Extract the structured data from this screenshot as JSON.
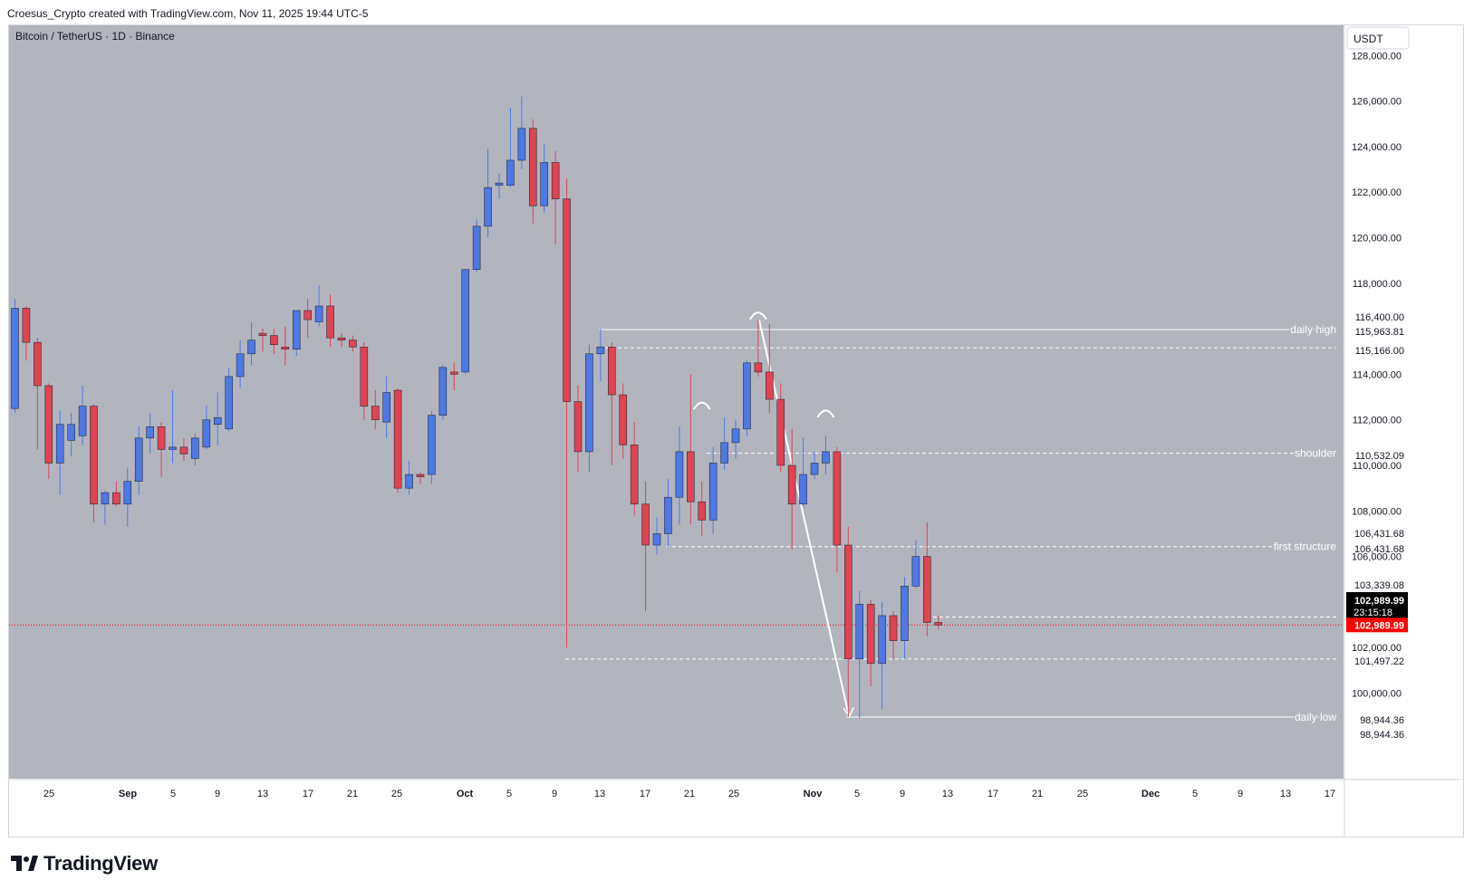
{
  "header": {
    "credit": "Croesus_Crypto created with TradingView.com, Nov 11, 2025 19:44 UTC-5"
  },
  "footer": {
    "brand": "TradingView",
    "logo_icon": "tradingview-logo-icon"
  },
  "colors": {
    "background": "#b2b5be",
    "bull": "#4d78e6",
    "bear": "#e04352",
    "annotation": "#ffffff",
    "current_price": "#ff0000"
  },
  "chart_data": {
    "type": "candlestick",
    "title": "Bitcoin / TetherUS · 1D · Binance",
    "currency": "USDT",
    "ylim": [
      96000,
      130000
    ],
    "y_ticks": [
      "128,000.00",
      "126,000.00",
      "124,000.00",
      "122,000.00",
      "120,000.00",
      "118,000.00",
      "114,000.00",
      "112,000.00",
      "110,000.00",
      "108,000.00",
      "106,000.00",
      "102,000.00",
      "100,000.00"
    ],
    "x_ticks": [
      "25",
      "Sep",
      "5",
      "9",
      "13",
      "17",
      "21",
      "25",
      "Oct",
      "5",
      "9",
      "13",
      "17",
      "21",
      "25",
      "Nov",
      "5",
      "9",
      "13",
      "17",
      "21",
      "25",
      "Dec",
      "5",
      "9",
      "13",
      "17"
    ],
    "candles": [
      {
        "date": "2025-08-22",
        "o": 112500,
        "h": 117300,
        "l": 112300,
        "c": 116900
      },
      {
        "date": "2025-08-23",
        "o": 116900,
        "h": 117000,
        "l": 114600,
        "c": 115400
      },
      {
        "date": "2025-08-24",
        "o": 115400,
        "h": 115600,
        "l": 110700,
        "c": 113500
      },
      {
        "date": "2025-08-25",
        "o": 113500,
        "h": 113600,
        "l": 109400,
        "c": 110100
      },
      {
        "date": "2025-08-26",
        "o": 110100,
        "h": 112400,
        "l": 108700,
        "c": 111800
      },
      {
        "date": "2025-08-27",
        "o": 111100,
        "h": 112300,
        "l": 110400,
        "c": 111800
      },
      {
        "date": "2025-08-28",
        "o": 111300,
        "h": 113500,
        "l": 110900,
        "c": 112600
      },
      {
        "date": "2025-08-29",
        "o": 112600,
        "h": 112700,
        "l": 107500,
        "c": 108300
      },
      {
        "date": "2025-08-30",
        "o": 108300,
        "h": 108900,
        "l": 107400,
        "c": 108800
      },
      {
        "date": "2025-08-31",
        "o": 108800,
        "h": 109300,
        "l": 108200,
        "c": 108300
      },
      {
        "date": "2025-09-01",
        "o": 108300,
        "h": 109900,
        "l": 107300,
        "c": 109300
      },
      {
        "date": "2025-09-02",
        "o": 109300,
        "h": 111700,
        "l": 108700,
        "c": 111200
      },
      {
        "date": "2025-09-03",
        "o": 111200,
        "h": 112300,
        "l": 110500,
        "c": 111700
      },
      {
        "date": "2025-09-04",
        "o": 111700,
        "h": 111900,
        "l": 109500,
        "c": 110700
      },
      {
        "date": "2025-09-05",
        "o": 110700,
        "h": 113300,
        "l": 110100,
        "c": 110800
      },
      {
        "date": "2025-09-06",
        "o": 110800,
        "h": 111200,
        "l": 110200,
        "c": 110500
      },
      {
        "date": "2025-09-07",
        "o": 110300,
        "h": 111400,
        "l": 110000,
        "c": 111200
      },
      {
        "date": "2025-09-08",
        "o": 110800,
        "h": 112600,
        "l": 110700,
        "c": 112000
      },
      {
        "date": "2025-09-09",
        "o": 111800,
        "h": 113200,
        "l": 110900,
        "c": 112100
      },
      {
        "date": "2025-09-10",
        "o": 111600,
        "h": 114300,
        "l": 111500,
        "c": 113900
      },
      {
        "date": "2025-09-11",
        "o": 113900,
        "h": 115500,
        "l": 113400,
        "c": 114900
      },
      {
        "date": "2025-09-12",
        "o": 114900,
        "h": 116300,
        "l": 114400,
        "c": 115500
      },
      {
        "date": "2025-09-13",
        "o": 115800,
        "h": 116000,
        "l": 115000,
        "c": 115700
      },
      {
        "date": "2025-09-14",
        "o": 115700,
        "h": 116000,
        "l": 114900,
        "c": 115300
      },
      {
        "date": "2025-09-15",
        "o": 115200,
        "h": 116100,
        "l": 114400,
        "c": 115100
      },
      {
        "date": "2025-09-16",
        "o": 115100,
        "h": 116800,
        "l": 114800,
        "c": 116800
      },
      {
        "date": "2025-09-17",
        "o": 116800,
        "h": 117300,
        "l": 115600,
        "c": 116400
      },
      {
        "date": "2025-09-18",
        "o": 116300,
        "h": 117900,
        "l": 116100,
        "c": 117000
      },
      {
        "date": "2025-09-19",
        "o": 117000,
        "h": 117500,
        "l": 115200,
        "c": 115600
      },
      {
        "date": "2025-09-20",
        "o": 115600,
        "h": 115800,
        "l": 115200,
        "c": 115500
      },
      {
        "date": "2025-09-21",
        "o": 115500,
        "h": 115700,
        "l": 115000,
        "c": 115200
      },
      {
        "date": "2025-09-22",
        "o": 115200,
        "h": 115400,
        "l": 112000,
        "c": 112600
      },
      {
        "date": "2025-09-23",
        "o": 112600,
        "h": 113300,
        "l": 111600,
        "c": 112000
      },
      {
        "date": "2025-09-24",
        "o": 111900,
        "h": 113900,
        "l": 111200,
        "c": 113200
      },
      {
        "date": "2025-09-25",
        "o": 113300,
        "h": 113400,
        "l": 108800,
        "c": 109000
      },
      {
        "date": "2025-09-26",
        "o": 109000,
        "h": 110200,
        "l": 108700,
        "c": 109600
      },
      {
        "date": "2025-09-27",
        "o": 109600,
        "h": 109700,
        "l": 109200,
        "c": 109500
      },
      {
        "date": "2025-09-28",
        "o": 109600,
        "h": 112400,
        "l": 109200,
        "c": 112200
      },
      {
        "date": "2025-09-29",
        "o": 112200,
        "h": 114400,
        "l": 112000,
        "c": 114300
      },
      {
        "date": "2025-09-30",
        "o": 114100,
        "h": 114500,
        "l": 113300,
        "c": 114000
      },
      {
        "date": "2025-10-01",
        "o": 114100,
        "h": 118500,
        "l": 114000,
        "c": 118600
      },
      {
        "date": "2025-10-02",
        "o": 118600,
        "h": 120800,
        "l": 118500,
        "c": 120500
      },
      {
        "date": "2025-10-03",
        "o": 120500,
        "h": 123900,
        "l": 120000,
        "c": 122200
      },
      {
        "date": "2025-10-04",
        "o": 122300,
        "h": 122800,
        "l": 121700,
        "c": 122400
      },
      {
        "date": "2025-10-05",
        "o": 122300,
        "h": 125700,
        "l": 122200,
        "c": 123400
      },
      {
        "date": "2025-10-06",
        "o": 123400,
        "h": 126200,
        "l": 123000,
        "c": 124800
      },
      {
        "date": "2025-10-07",
        "o": 124800,
        "h": 125200,
        "l": 120600,
        "c": 121400
      },
      {
        "date": "2025-10-08",
        "o": 121400,
        "h": 124100,
        "l": 121100,
        "c": 123300
      },
      {
        "date": "2025-10-09",
        "o": 123300,
        "h": 123800,
        "l": 119700,
        "c": 121700
      },
      {
        "date": "2025-10-10",
        "o": 121700,
        "h": 122600,
        "l": 102000,
        "c": 112800
      },
      {
        "date": "2025-10-11",
        "o": 112800,
        "h": 113500,
        "l": 109700,
        "c": 110600
      },
      {
        "date": "2025-10-12",
        "o": 110600,
        "h": 115300,
        "l": 109700,
        "c": 114900
      },
      {
        "date": "2025-10-13",
        "o": 114900,
        "h": 116000,
        "l": 113700,
        "c": 115200
      },
      {
        "date": "2025-10-14",
        "o": 115200,
        "h": 115400,
        "l": 110000,
        "c": 113100
      },
      {
        "date": "2025-10-15",
        "o": 113100,
        "h": 113600,
        "l": 110300,
        "c": 110900
      },
      {
        "date": "2025-10-16",
        "o": 110900,
        "h": 111900,
        "l": 107800,
        "c": 108300
      },
      {
        "date": "2025-10-17",
        "o": 108300,
        "h": 109300,
        "l": 103600,
        "c": 106500
      },
      {
        "date": "2025-10-18",
        "o": 106500,
        "h": 107700,
        "l": 106100,
        "c": 107000
      },
      {
        "date": "2025-10-19",
        "o": 107000,
        "h": 109400,
        "l": 106400,
        "c": 108600
      },
      {
        "date": "2025-10-20",
        "o": 108600,
        "h": 111700,
        "l": 107400,
        "c": 110600
      },
      {
        "date": "2025-10-21",
        "o": 110600,
        "h": 114000,
        "l": 107400,
        "c": 108400
      },
      {
        "date": "2025-10-22",
        "o": 108400,
        "h": 109300,
        "l": 106900,
        "c": 107600
      },
      {
        "date": "2025-10-23",
        "o": 107600,
        "h": 110800,
        "l": 107000,
        "c": 110100
      },
      {
        "date": "2025-10-24",
        "o": 110100,
        "h": 112100,
        "l": 109800,
        "c": 111000
      },
      {
        "date": "2025-10-25",
        "o": 111000,
        "h": 112000,
        "l": 110300,
        "c": 111600
      },
      {
        "date": "2025-10-26",
        "o": 111600,
        "h": 114600,
        "l": 111300,
        "c": 114500
      },
      {
        "date": "2025-10-27",
        "o": 114500,
        "h": 116400,
        "l": 113900,
        "c": 114100
      },
      {
        "date": "2025-10-28",
        "o": 114100,
        "h": 116200,
        "l": 112300,
        "c": 112900
      },
      {
        "date": "2025-10-29",
        "o": 112900,
        "h": 113600,
        "l": 109700,
        "c": 110000
      },
      {
        "date": "2025-10-30",
        "o": 110000,
        "h": 111600,
        "l": 106300,
        "c": 108300
      },
      {
        "date": "2025-10-31",
        "o": 108300,
        "h": 111200,
        "l": 108200,
        "c": 109600
      },
      {
        "date": "2025-11-01",
        "o": 109600,
        "h": 110600,
        "l": 109400,
        "c": 110100
      },
      {
        "date": "2025-11-02",
        "o": 110100,
        "h": 111300,
        "l": 109600,
        "c": 110600
      },
      {
        "date": "2025-11-03",
        "o": 110600,
        "h": 110800,
        "l": 105300,
        "c": 106500
      },
      {
        "date": "2025-11-04",
        "o": 106500,
        "h": 107300,
        "l": 98944.36,
        "c": 101500
      },
      {
        "date": "2025-11-05",
        "o": 101500,
        "h": 104500,
        "l": 98900,
        "c": 103900
      },
      {
        "date": "2025-11-06",
        "o": 103900,
        "h": 104100,
        "l": 100300,
        "c": 101300
      },
      {
        "date": "2025-11-07",
        "o": 101300,
        "h": 104000,
        "l": 99300,
        "c": 103400
      },
      {
        "date": "2025-11-08",
        "o": 103400,
        "h": 103600,
        "l": 101500,
        "c": 102300
      },
      {
        "date": "2025-11-09",
        "o": 102300,
        "h": 105100,
        "l": 101500,
        "c": 104700
      },
      {
        "date": "2025-11-10",
        "o": 104700,
        "h": 106700,
        "l": 104600,
        "c": 106000
      },
      {
        "date": "2025-11-11",
        "o": 106000,
        "h": 107500,
        "l": 102500,
        "c": 103100
      },
      {
        "date": "2025-11-12",
        "o": 103100,
        "h": 103400,
        "l": 102800,
        "c": 102989.99
      }
    ],
    "levels": [
      {
        "label": "daily high",
        "price": 115963.81,
        "style": "solid"
      },
      {
        "label": "",
        "price": 115166.0,
        "style": "dashed"
      },
      {
        "label": "shoulder",
        "price": 110532.09,
        "style": "dashed"
      },
      {
        "label": "first structure",
        "price": 106431.68,
        "style": "dashed"
      },
      {
        "label": "",
        "price": 103339.08,
        "style": "dashed"
      },
      {
        "label": "",
        "price": 101497.22,
        "style": "dashed"
      },
      {
        "label": "daily low",
        "price": 98944.36,
        "style": "solid"
      }
    ],
    "price_badges": [
      "116,400.00",
      "115,963.81",
      "115,166.00",
      "110,532.09",
      "106,431.68",
      "106,431.68",
      "103,339.08",
      "101,497.22",
      "98,944.36",
      "98,944.36"
    ],
    "current_price": "102,989.99",
    "countdown": "23:15:18"
  }
}
